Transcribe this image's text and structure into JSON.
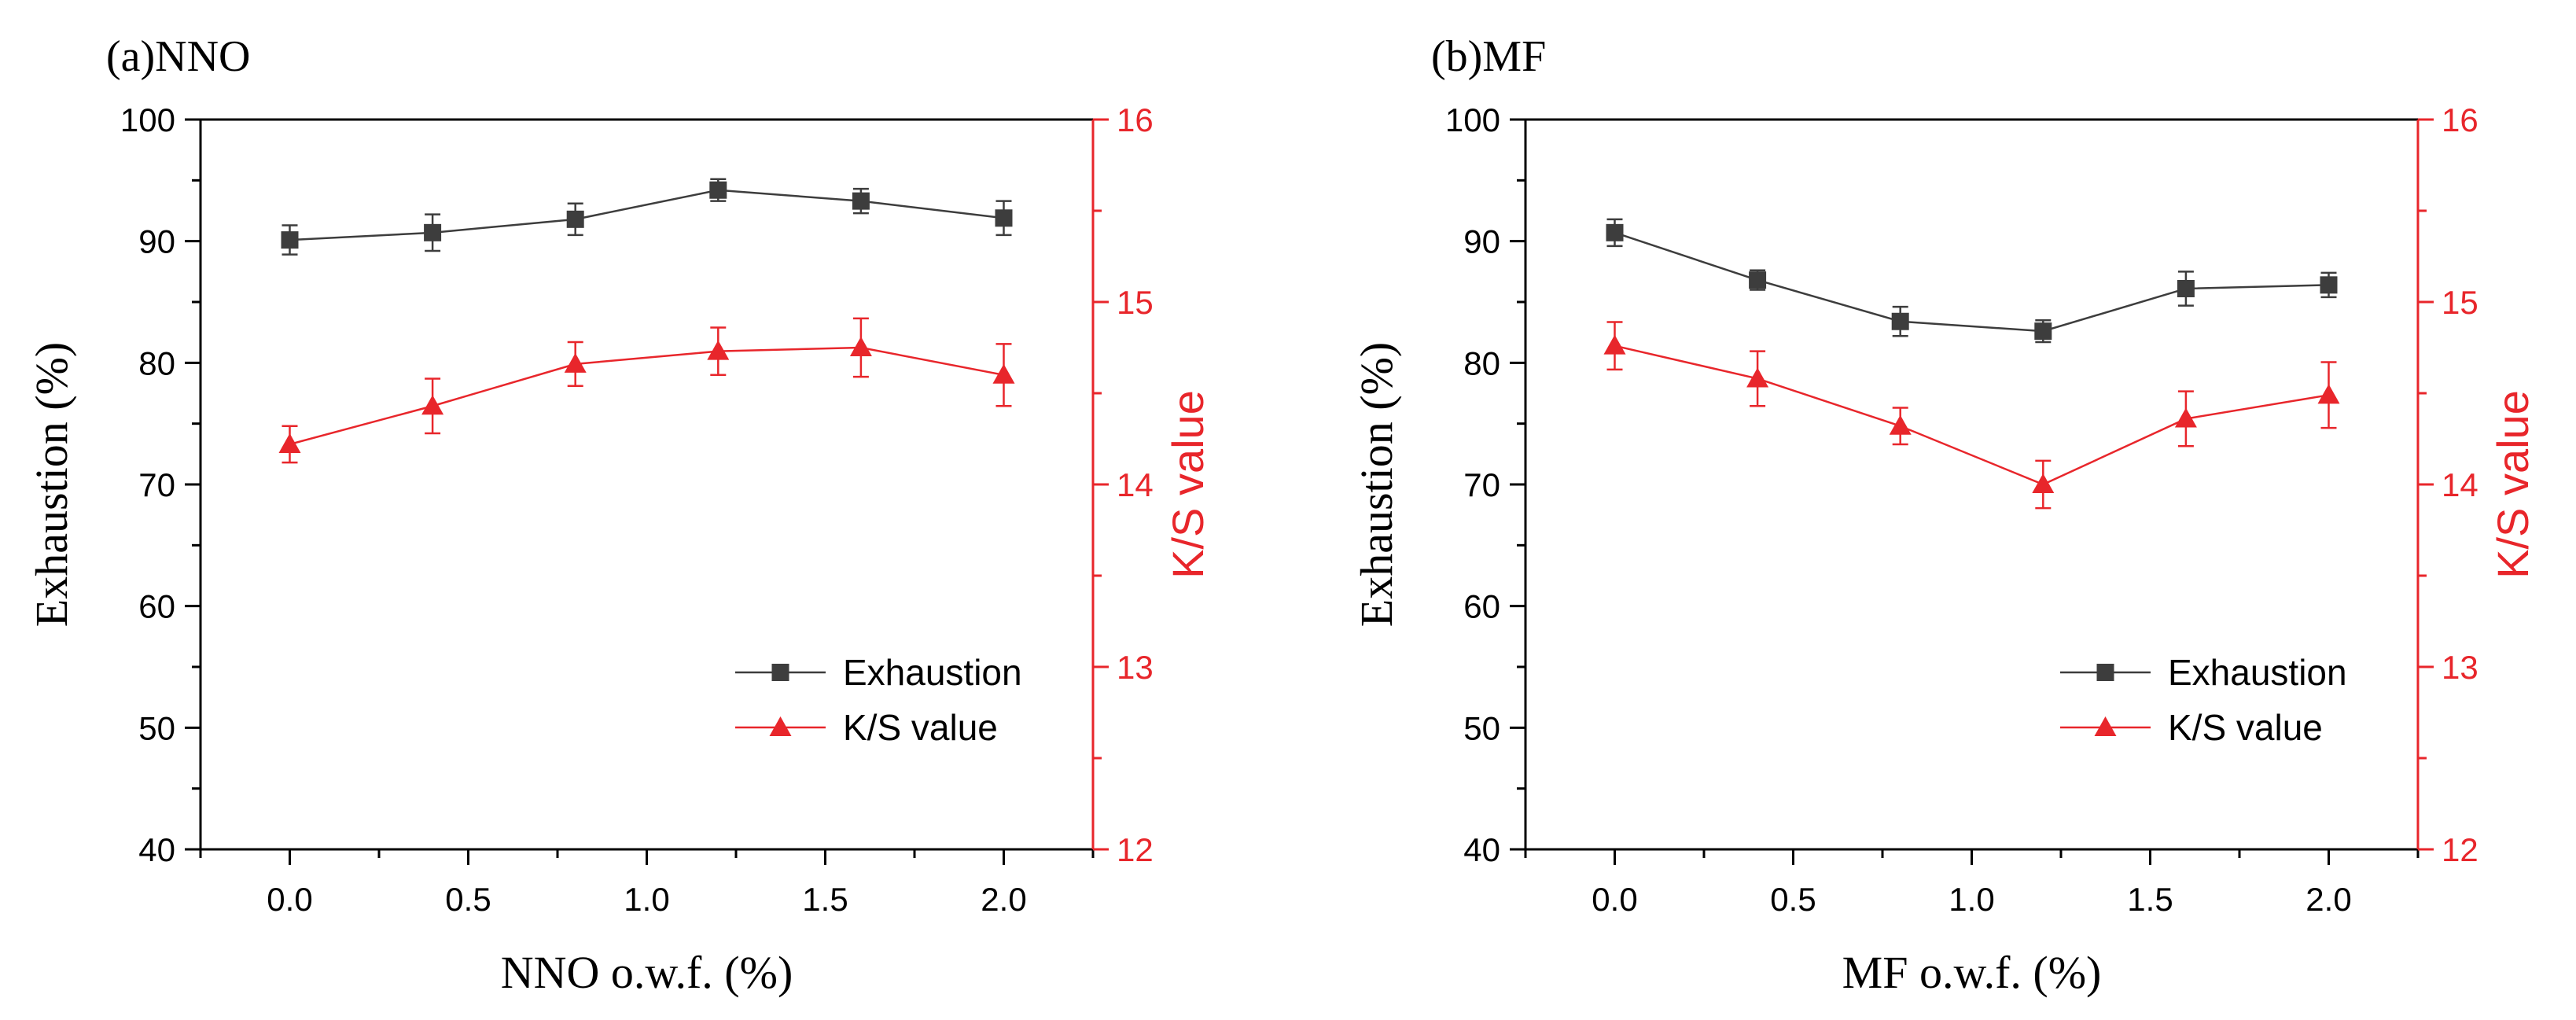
{
  "chart_data": [
    {
      "type": "line",
      "panel_label": "(a)NNO",
      "xlabel": "NNO o.w.f. (%)",
      "ylabel": "Exhaustion (%)",
      "y2label": "K/S value",
      "xlim": [
        -0.25,
        2.25
      ],
      "ylim": [
        40,
        100
      ],
      "y2lim": [
        12,
        16
      ],
      "x_ticks": [
        "0.0",
        "0.5",
        "1.0",
        "1.5",
        "2.0"
      ],
      "y_ticks": [
        "40",
        "50",
        "60",
        "70",
        "80",
        "90",
        "100"
      ],
      "y2_ticks": [
        "12",
        "13",
        "14",
        "15",
        "16"
      ],
      "x": [
        0,
        0.4,
        0.8,
        1.2,
        1.6,
        2.0
      ],
      "legend_position": "bottom-right",
      "series": [
        {
          "name": "Exhaustion",
          "axis": "left",
          "color": "#3d3d3d",
          "marker": "square",
          "values": [
            90.1,
            90.7,
            91.8,
            94.2,
            93.3,
            91.9
          ],
          "errors": [
            1.2,
            1.5,
            1.3,
            0.9,
            1.0,
            1.4
          ]
        },
        {
          "name": "K/S value",
          "axis": "right",
          "color": "#e8262b",
          "marker": "triangle",
          "values": [
            14.22,
            14.43,
            14.66,
            14.73,
            14.75,
            14.6
          ],
          "errors": [
            0.1,
            0.15,
            0.12,
            0.13,
            0.16,
            0.17
          ]
        }
      ]
    },
    {
      "type": "line",
      "panel_label": "(b)MF",
      "xlabel": "MF o.w.f. (%)",
      "ylabel": "Exhaustion (%)",
      "y2label": "K/S value",
      "xlim": [
        -0.25,
        2.25
      ],
      "ylim": [
        40,
        100
      ],
      "y2lim": [
        12,
        16
      ],
      "x_ticks": [
        "0.0",
        "0.5",
        "1.0",
        "1.5",
        "2.0"
      ],
      "y_ticks": [
        "40",
        "50",
        "60",
        "70",
        "80",
        "90",
        "100"
      ],
      "y2_ticks": [
        "12",
        "13",
        "14",
        "15",
        "16"
      ],
      "x": [
        0,
        0.4,
        0.8,
        1.2,
        1.6,
        2.0
      ],
      "legend_position": "bottom-right",
      "series": [
        {
          "name": "Exhaustion",
          "axis": "left",
          "color": "#3d3d3d",
          "marker": "square",
          "values": [
            90.7,
            86.8,
            83.4,
            82.6,
            86.1,
            86.4
          ],
          "errors": [
            1.1,
            0.8,
            1.2,
            0.9,
            1.4,
            1.0
          ]
        },
        {
          "name": "K/S value",
          "axis": "right",
          "color": "#e8262b",
          "marker": "triangle",
          "values": [
            14.76,
            14.58,
            14.32,
            14.0,
            14.36,
            14.49
          ],
          "errors": [
            0.13,
            0.15,
            0.1,
            0.13,
            0.15,
            0.18
          ]
        }
      ]
    }
  ]
}
